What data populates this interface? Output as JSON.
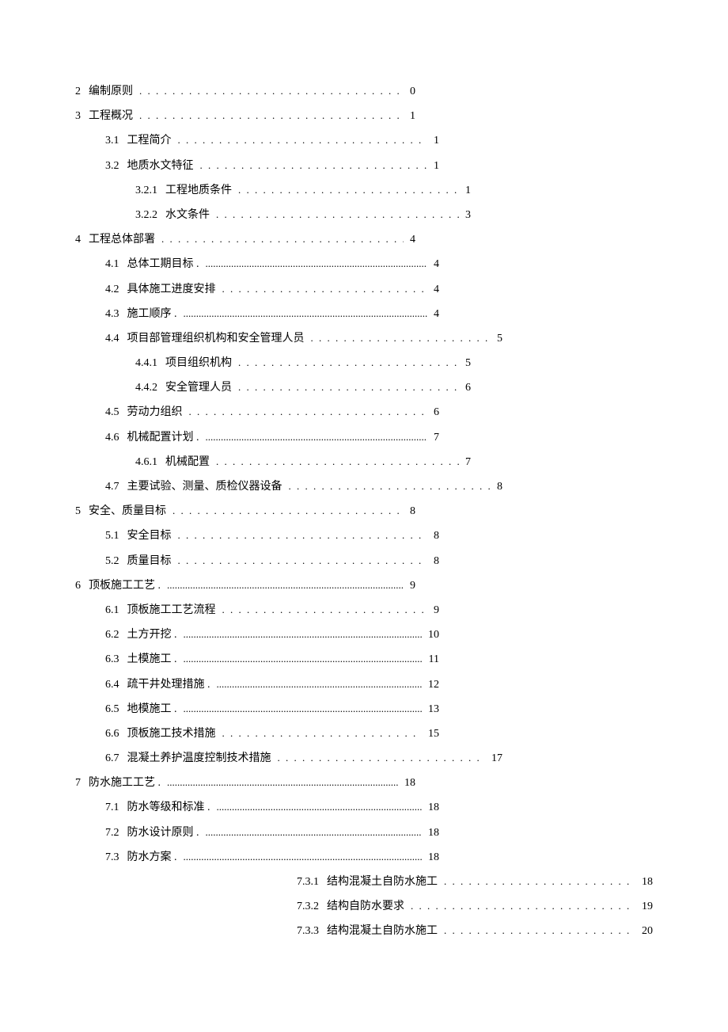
{
  "toc": [
    {
      "level": 1,
      "num": "2",
      "title": "编制原则",
      "page": "0",
      "leader": "dots",
      "width": "short-row"
    },
    {
      "level": 1,
      "num": "3",
      "title": "工程概况",
      "page": "1",
      "leader": "dots",
      "width": "short-row"
    },
    {
      "level": 2,
      "num": "3.1",
      "title": "工程简介",
      "page": "1",
      "leader": "dots",
      "width": "short-row-2"
    },
    {
      "level": 2,
      "num": "3.2",
      "title": "地质水文特征",
      "page": "1",
      "leader": "dots",
      "width": "short-row-2"
    },
    {
      "level": 3,
      "num": "3.2.1",
      "title": "工程地质条件",
      "page": "1",
      "leader": "dots",
      "width": "short-row-3"
    },
    {
      "level": 3,
      "num": "3.2.2",
      "title": "水文条件",
      "page": "3",
      "leader": "dots",
      "width": "short-row-3"
    },
    {
      "level": 1,
      "num": "4",
      "title": "工程总体部署",
      "page": "4",
      "leader": "dots",
      "width": "short-row"
    },
    {
      "level": 2,
      "num": "4.1",
      "title": "总体工期目标 .",
      "page": "4",
      "leader": "thin",
      "width": "short-row-2"
    },
    {
      "level": 2,
      "num": "4.2",
      "title": "具体施工进度安排",
      "page": "4",
      "leader": "dots",
      "width": "short-row-2"
    },
    {
      "level": 2,
      "num": "4.3",
      "title": "施工顺序 .",
      "page": "4",
      "leader": "thin",
      "width": "short-row-2"
    },
    {
      "level": 2,
      "num": "4.4",
      "title": "项目部管理组织机构和安全管理人员",
      "page": "5",
      "leader": "dots",
      "width": "short-row-4"
    },
    {
      "level": 3,
      "num": "4.4.1",
      "title": "项目组织机构",
      "page": "5",
      "leader": "dots",
      "width": "short-row-3"
    },
    {
      "level": 3,
      "num": "4.4.2",
      "title": "安全管理人员",
      "page": "6",
      "leader": "dots",
      "width": "short-row-3"
    },
    {
      "level": 2,
      "num": "4.5",
      "title": "劳动力组织",
      "page": "6",
      "leader": "dots",
      "width": "short-row-2"
    },
    {
      "level": 2,
      "num": "4.6",
      "title": "机械配置计划 .",
      "page": "7",
      "leader": "thin",
      "width": "short-row-2"
    },
    {
      "level": 3,
      "num": "4.6.1",
      "title": "机械配置",
      "page": "7",
      "leader": "dots",
      "width": "short-row-3"
    },
    {
      "level": 2,
      "num": "4.7",
      "title": "主要试验、测量、质检仪器设备",
      "page": "8",
      "leader": "dots",
      "width": "short-row-4"
    },
    {
      "level": 1,
      "num": "5",
      "title": "安全、质量目标",
      "page": "8",
      "leader": "dots",
      "width": "short-row"
    },
    {
      "level": 2,
      "num": "5.1",
      "title": "安全目标",
      "page": "8",
      "leader": "dots",
      "width": "short-row-2"
    },
    {
      "level": 2,
      "num": "5.2",
      "title": "质量目标",
      "page": "8",
      "leader": "dots",
      "width": "short-row-2"
    },
    {
      "level": 1,
      "num": "6",
      "title": "顶板施工工艺 .",
      "page": "9",
      "leader": "thin",
      "width": "short-row"
    },
    {
      "level": 2,
      "num": "6.1",
      "title": "顶板施工工艺流程",
      "page": "9",
      "leader": "dots",
      "width": "short-row-2"
    },
    {
      "level": 2,
      "num": "6.2",
      "title": "土方开挖 .",
      "page": "10",
      "leader": "thin",
      "width": "short-row-2"
    },
    {
      "level": 2,
      "num": "6.3",
      "title": "土模施工 .",
      "page": "11",
      "leader": "thin",
      "width": "short-row-2"
    },
    {
      "level": 2,
      "num": "6.4",
      "title": "疏干井处理措施 .",
      "page": "12",
      "leader": "thin",
      "width": "short-row-2"
    },
    {
      "level": 2,
      "num": "6.5",
      "title": "地模施工 .",
      "page": "13",
      "leader": "thin",
      "width": "short-row-2"
    },
    {
      "level": 2,
      "num": "6.6",
      "title": "顶板施工技术措施",
      "page": "15",
      "leader": "dots",
      "width": "short-row-2"
    },
    {
      "level": 2,
      "num": "6.7",
      "title": "混凝土养护温度控制技术措施",
      "page": "17",
      "leader": "dots",
      "width": "short-row-4"
    },
    {
      "level": 1,
      "num": "7",
      "title": "防水施工工艺 .",
      "page": "18",
      "leader": "thin",
      "width": "short-row"
    },
    {
      "level": 2,
      "num": "7.1",
      "title": "防水等级和标准 .",
      "page": "18",
      "leader": "thin",
      "width": "short-row-2"
    },
    {
      "level": 2,
      "num": "7.2",
      "title": "防水设计原则 .",
      "page": "18",
      "leader": "thin",
      "width": "short-row-2"
    },
    {
      "level": 2,
      "num": "7.3",
      "title": "防水方案 .",
      "page": "18",
      "leader": "thin",
      "width": "short-row-2"
    },
    {
      "level": 3,
      "num": "7.3.1",
      "title": "结构混凝土自防水施工",
      "page": "18",
      "leader": "dots",
      "width": "full",
      "special": "b"
    },
    {
      "level": 3,
      "num": "7.3.2",
      "title": "结构自防水要求",
      "page": "19",
      "leader": "dots",
      "width": "full",
      "special": "b"
    },
    {
      "level": 3,
      "num": "7.3.3",
      "title": "结构混凝土自防水施工",
      "page": "20",
      "leader": "dots",
      "width": "full",
      "special": "b"
    }
  ],
  "leaderDots": ". . . . . . . . . . . . . . . . . . . . . . . . . . . . . . . . . . . . . . . . . . . . . . . . . . . . .",
  "leaderThin": "................................................................................................................."
}
